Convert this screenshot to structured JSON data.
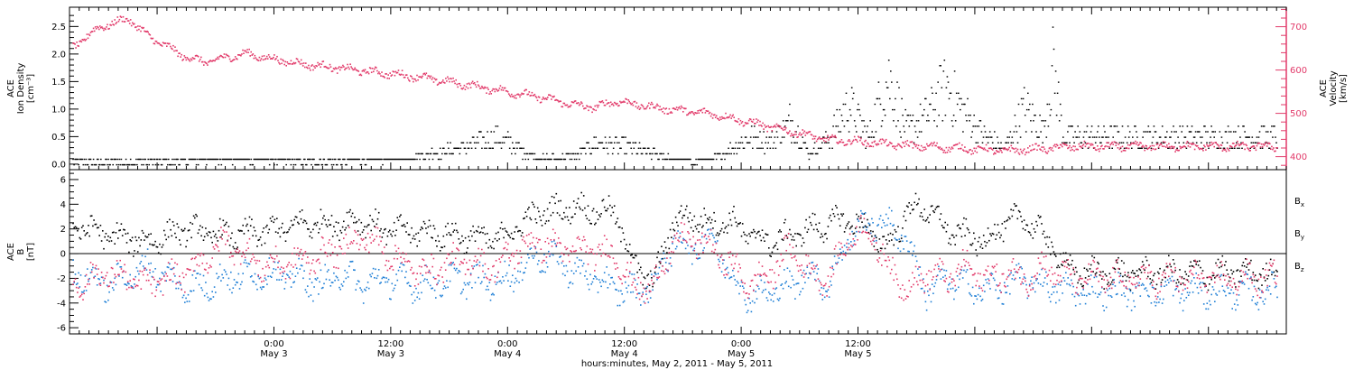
{
  "chart_data": [
    {
      "type": "scatter",
      "panel": "top",
      "ylabel_lines": [
        "ACE",
        "Ion Density",
        "[cm⁻³]"
      ],
      "y2label_lines": [
        "ACE",
        "Velocity",
        "[km/s]"
      ],
      "ylim": [
        -0.1,
        2.85
      ],
      "y2lim": [
        370,
        745
      ],
      "yticks": [
        "0.0",
        "0.5",
        "1.0",
        "1.5",
        "2.0",
        "2.5"
      ],
      "y2ticks": [
        "400",
        "500",
        "600",
        "700"
      ],
      "series": [
        {
          "color": "#000000",
          "axis": "left",
          "anchors_hours": [
            0,
            10,
            16,
            22,
            28,
            34,
            40,
            44,
            48,
            52,
            54,
            58,
            62,
            64,
            66,
            70,
            72,
            74,
            76,
            78,
            80,
            82,
            84,
            86,
            88,
            90,
            92,
            94,
            96,
            98,
            100,
            101,
            102,
            103
          ],
          "anchors_values": [
            0.05,
            0.05,
            0.08,
            0.06,
            0.05,
            0.1,
            0.3,
            0.5,
            0.1,
            0.15,
            0.4,
            0.3,
            0.1,
            0.05,
            0.1,
            0.5,
            0.4,
            0.8,
            0.2,
            0.5,
            1.1,
            0.5,
            1.6,
            0.6,
            0.9,
            1.4,
            0.9,
            0.5,
            0.3,
            1.0,
            0.6,
            1.8,
            0.5,
            0.5
          ]
        },
        {
          "color": "#e23a6a",
          "axis": "right",
          "anchors_hours": [
            0,
            3,
            6,
            8,
            12,
            14,
            18,
            20,
            24,
            28,
            30,
            36,
            40,
            44,
            48,
            52,
            54,
            56,
            60,
            64,
            66,
            70,
            72,
            76,
            78,
            82,
            84,
            88,
            92,
            96,
            100,
            103
          ],
          "anchors_values": [
            650,
            700,
            720,
            680,
            630,
            620,
            640,
            630,
            615,
            605,
            600,
            585,
            570,
            555,
            540,
            520,
            515,
            530,
            515,
            505,
            500,
            480,
            470,
            450,
            440,
            435,
            430,
            425,
            420,
            415,
            420,
            425
          ]
        }
      ]
    },
    {
      "type": "scatter",
      "panel": "bottom",
      "ylabel_lines": [
        "ACE",
        "B",
        "[nT]"
      ],
      "ylim": [
        -6.5,
        6.8
      ],
      "yticks": [
        "-6",
        "-4",
        "-2",
        "0",
        "2",
        "4",
        "6"
      ],
      "zero_line": true,
      "series": [
        {
          "name": "Bx",
          "color": "#000000",
          "anchors_hours": [
            0,
            4,
            8,
            12,
            16,
            20,
            24,
            28,
            30,
            32,
            36,
            40,
            44,
            47,
            48,
            50,
            52,
            54,
            56,
            58,
            60,
            62,
            64,
            66,
            68,
            70,
            72,
            74,
            76,
            78,
            80,
            82,
            84,
            86,
            88,
            90,
            92,
            94,
            96,
            98,
            100,
            103
          ],
          "anchors_values": [
            2.5,
            1.5,
            1.0,
            2.0,
            1.5,
            1.8,
            2.5,
            2.5,
            2.8,
            2.0,
            1.8,
            1.5,
            1.2,
            2.8,
            3.3,
            3.6,
            3.8,
            3.5,
            3.4,
            -1.0,
            -2.2,
            2.8,
            3.0,
            2.5,
            2.6,
            1.5,
            1.0,
            1.5,
            2.0,
            2.5,
            2.8,
            2.0,
            0.5,
            3.5,
            3.8,
            2.0,
            1.5,
            1.0,
            2.5,
            3.0,
            1.5,
            -1.5
          ]
        },
        {
          "name": "By",
          "color": "#1f7fd6",
          "anchors_hours": [
            0,
            4,
            8,
            12,
            16,
            20,
            24,
            26,
            28,
            30,
            32,
            36,
            40,
            44,
            46,
            48,
            50,
            52,
            54,
            56,
            58,
            60,
            62,
            64,
            66,
            68,
            70,
            72,
            74,
            76,
            78,
            80,
            82,
            84,
            86,
            88,
            90,
            92,
            94,
            96,
            98,
            100,
            103
          ],
          "anchors_values": [
            -1.5,
            -2.5,
            -1.0,
            -2.8,
            -2.0,
            -1.5,
            -2.0,
            -2.5,
            -1.5,
            -2.5,
            -2.0,
            -2.5,
            -2.0,
            -2.2,
            -1.5,
            0.0,
            -0.5,
            -1.5,
            -2.0,
            -2.8,
            -3.0,
            -2.5,
            1.0,
            0.5,
            1.5,
            -2.0,
            -3.5,
            -3.0,
            -2.5,
            -1.5,
            -2.5,
            1.5,
            2.5,
            2.5,
            1.0,
            -3.0,
            -2.0,
            -2.5,
            -3.0,
            -2.5,
            -2.0,
            -2.5,
            -3.0
          ]
        },
        {
          "name": "Bz",
          "color": "#e23a6a",
          "anchors_hours": [
            0,
            4,
            8,
            12,
            16,
            20,
            24,
            28,
            30,
            32,
            36,
            40,
            44,
            46,
            48,
            50,
            52,
            54,
            56,
            58,
            60,
            62,
            64,
            66,
            68,
            70,
            72,
            74,
            76,
            78,
            80,
            82,
            84,
            86,
            88,
            90,
            92,
            94,
            96,
            98,
            100,
            103
          ],
          "anchors_values": [
            -2.5,
            -1.5,
            -2.5,
            -1.5,
            1.0,
            -1.0,
            -0.5,
            0.5,
            1.5,
            0.5,
            -1.5,
            -0.5,
            -1.0,
            0.5,
            1.0,
            0.5,
            0.3,
            0.2,
            0.0,
            -2.8,
            -2.5,
            1.0,
            1.2,
            0.5,
            -1.0,
            -2.5,
            -1.5,
            0.5,
            -1.5,
            -2.0,
            1.5,
            2.0,
            -1.0,
            -2.8,
            -1.5,
            -2.0,
            -1.0,
            -2.0,
            -1.5,
            -2.0,
            -1.0,
            -2.0
          ]
        }
      ]
    }
  ],
  "x_axis": {
    "ticks": [
      {
        "hour": 0,
        "time": "0:00",
        "date": "May 3"
      },
      {
        "hour": 12,
        "time": "12:00",
        "date": "May 3"
      },
      {
        "hour": 24,
        "time": "0:00",
        "date": "May 4"
      },
      {
        "hour": 36,
        "time": "12:00",
        "date": "May 4"
      },
      {
        "hour": 48,
        "time": "0:00",
        "date": "May 5"
      },
      {
        "hour": 60,
        "time": "12:00",
        "date": "May 5"
      }
    ],
    "xlabel": "hours:minutes, May  2, 2011 - May  5, 2011"
  },
  "legend": [
    {
      "text": "B",
      "sub": "x",
      "color": "#000000"
    },
    {
      "text": "B",
      "sub": "y",
      "color": "#1f7fd6"
    },
    {
      "text": "B",
      "sub": "z",
      "color": "#e23a6a"
    }
  ]
}
